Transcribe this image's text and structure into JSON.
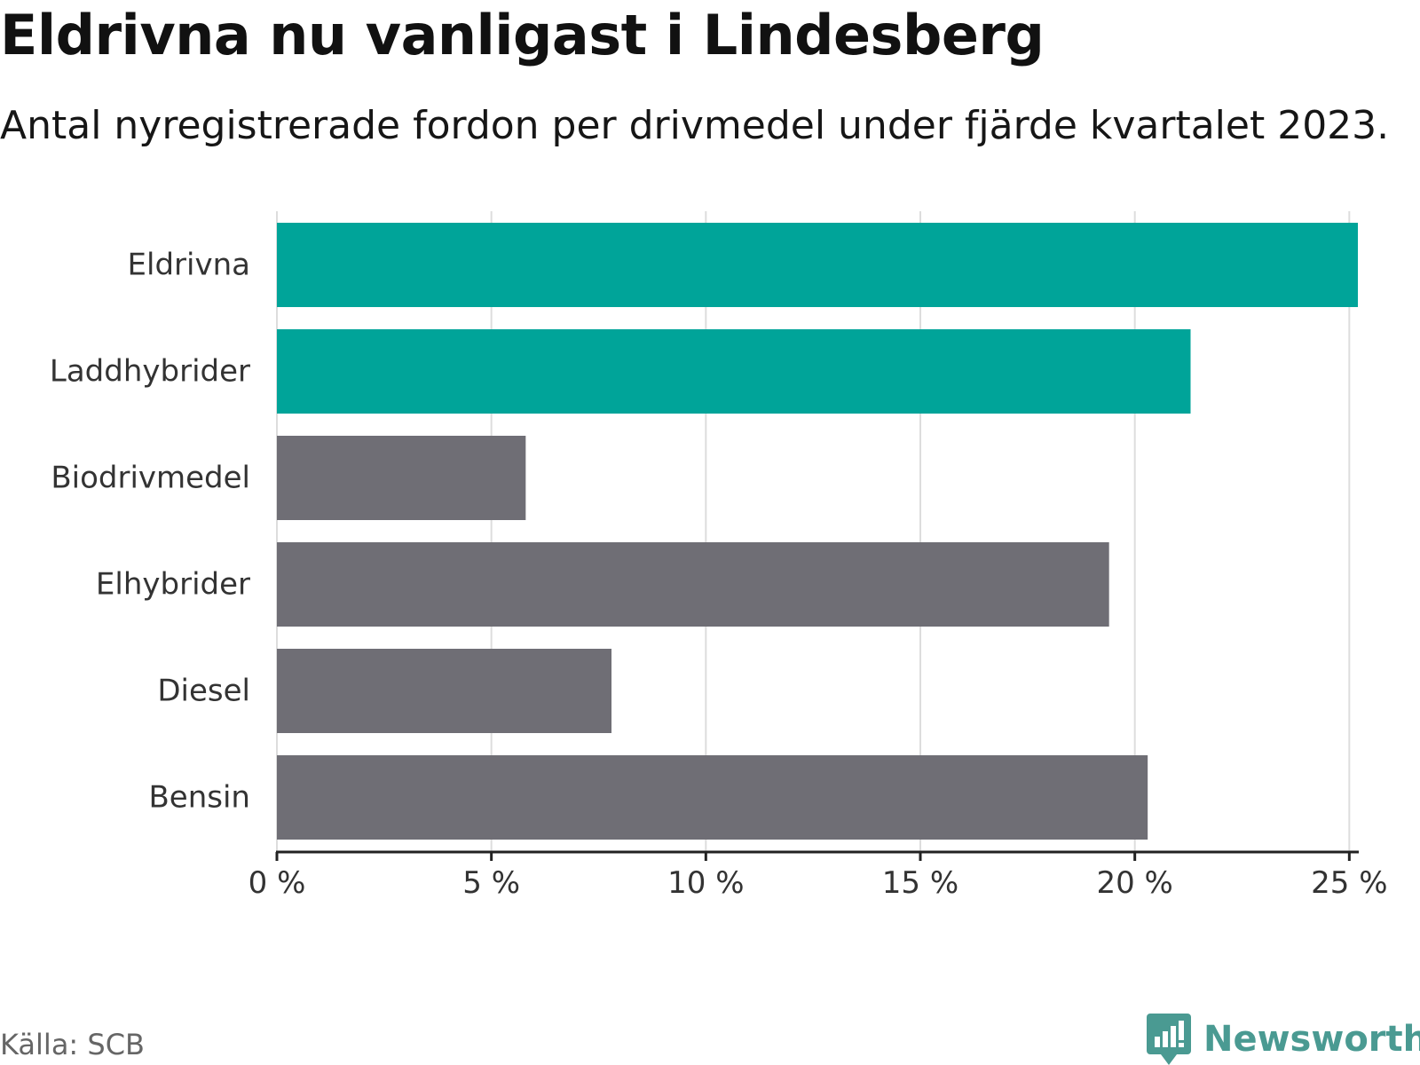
{
  "title": "Eldrivna nu vanligast i Lindesberg",
  "subtitle": "Antal nyregistrerade fordon per drivmedel under fjärde kvartalet 2023.",
  "source": "Källa: SCB",
  "brand": {
    "name": "Newsworthy",
    "color": "#4a9a92",
    "icon": "bar-chart-speech-bubble-icon"
  },
  "colors": {
    "highlight": "#00a499",
    "default": "#6f6e75",
    "grid": "#dddddd",
    "axis": "#222222",
    "label": "#333333"
  },
  "chart_data": {
    "type": "bar",
    "orientation": "horizontal",
    "title": "Eldrivna nu vanligast i Lindesberg",
    "subtitle": "Antal nyregistrerade fordon per drivmedel under fjärde kvartalet 2023.",
    "categories": [
      "Eldrivna",
      "Laddhybrider",
      "Biodrivmedel",
      "Elhybrider",
      "Diesel",
      "Bensin"
    ],
    "values": [
      25.2,
      21.3,
      5.8,
      19.4,
      7.8,
      20.3
    ],
    "highlighted": [
      true,
      true,
      false,
      false,
      false,
      false
    ],
    "xlabel": "",
    "ylabel": "",
    "unit": "%",
    "xlim": [
      0,
      25.2
    ],
    "xticks": [
      0,
      5,
      10,
      15,
      20,
      25
    ],
    "xtick_labels": [
      "0 %",
      "5 %",
      "10 %",
      "15 %",
      "20 %",
      "25 %"
    ],
    "grid": true,
    "legend": "none"
  }
}
